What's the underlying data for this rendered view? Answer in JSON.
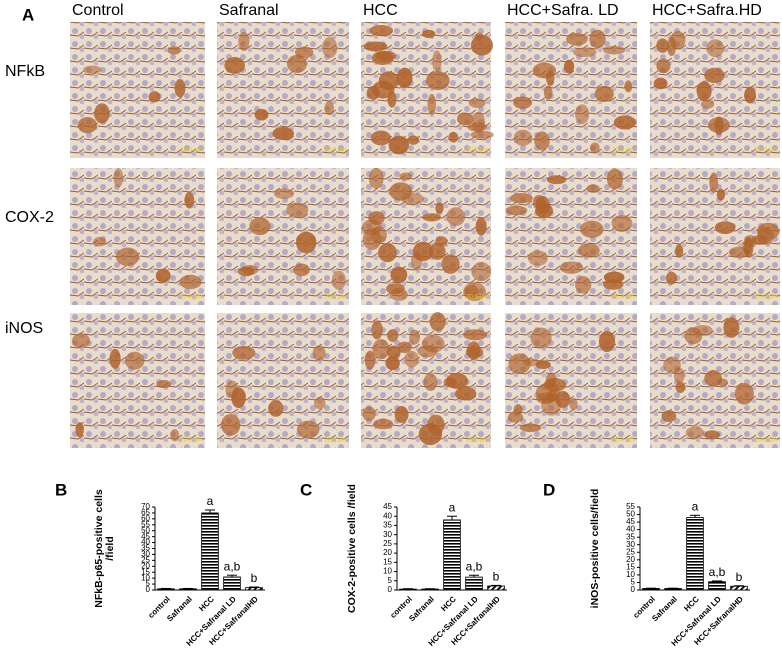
{
  "panel_a": {
    "label": "A",
    "columns": [
      "Control",
      "Safranal",
      "HCC",
      "HCC+Safra. LD",
      "HCC+Safra.HD"
    ],
    "rows": [
      "NFkB",
      "COX-2",
      "iNOS"
    ],
    "scale_bar": "20.0 μm"
  },
  "chart_data": [
    {
      "panel": "B",
      "type": "bar",
      "ylabel": [
        "NFkB-p65-positive cells",
        "/field"
      ],
      "categories": [
        "control",
        "Safranal",
        "HCC",
        "HCC+Safranal LD",
        "HCC+SafranalHD"
      ],
      "values": [
        1,
        1,
        65,
        11,
        2
      ],
      "errors": [
        0.3,
        0.3,
        2.5,
        1.5,
        0.5
      ],
      "bar_patterns": [
        "solid",
        "solid",
        "horizontal",
        "horizontal",
        "diagonal"
      ],
      "annotations": [
        {
          "category": "HCC",
          "text": "a"
        },
        {
          "category": "HCC+Safranal LD",
          "text": "a,b"
        },
        {
          "category": "HCC+SafranalHD",
          "text": "b"
        }
      ],
      "ylim": [
        0,
        70
      ],
      "yticks": [
        0,
        5,
        10,
        15,
        20,
        25,
        30,
        35,
        40,
        45,
        50,
        55,
        60,
        65,
        70
      ]
    },
    {
      "panel": "C",
      "type": "bar",
      "ylabel": [
        "COX-2-positive cells /field"
      ],
      "categories": [
        "control",
        "Safranal",
        "HCC",
        "HCC+Safranal LD",
        "HCC+SafranalHD"
      ],
      "values": [
        0.5,
        0.5,
        38,
        7,
        2.2
      ],
      "errors": [
        0.2,
        0.2,
        2,
        1,
        0.3
      ],
      "bar_patterns": [
        "solid",
        "solid",
        "horizontal",
        "horizontal",
        "diagonal"
      ],
      "annotations": [
        {
          "category": "HCC",
          "text": "a"
        },
        {
          "category": "HCC+Safranal LD",
          "text": "a,b"
        },
        {
          "category": "HCC+SafranalHD",
          "text": "b"
        }
      ],
      "ylim": [
        0,
        45
      ],
      "yticks": [
        0,
        5,
        10,
        15,
        20,
        25,
        30,
        35,
        40,
        45
      ]
    },
    {
      "panel": "D",
      "type": "bar",
      "ylabel": [
        "iNOS-positive cells/field"
      ],
      "categories": [
        "control",
        "Safranal",
        "HCC",
        "HCC+Safranal LD",
        "HCC+SafranalHD"
      ],
      "values": [
        1,
        1,
        48,
        5.5,
        2.5
      ],
      "errors": [
        0.2,
        0.2,
        1.5,
        0.5,
        0.3
      ],
      "bar_patterns": [
        "solid",
        "solid",
        "horizontal",
        "horizontal",
        "diagonal"
      ],
      "annotations": [
        {
          "category": "HCC",
          "text": "a"
        },
        {
          "category": "HCC+Safranal LD",
          "text": "a,b"
        },
        {
          "category": "HCC+SafranalHD",
          "text": "b"
        }
      ],
      "ylim": [
        0,
        55
      ],
      "yticks": [
        0,
        5,
        10,
        15,
        20,
        25,
        30,
        35,
        40,
        45,
        50,
        55
      ]
    }
  ]
}
